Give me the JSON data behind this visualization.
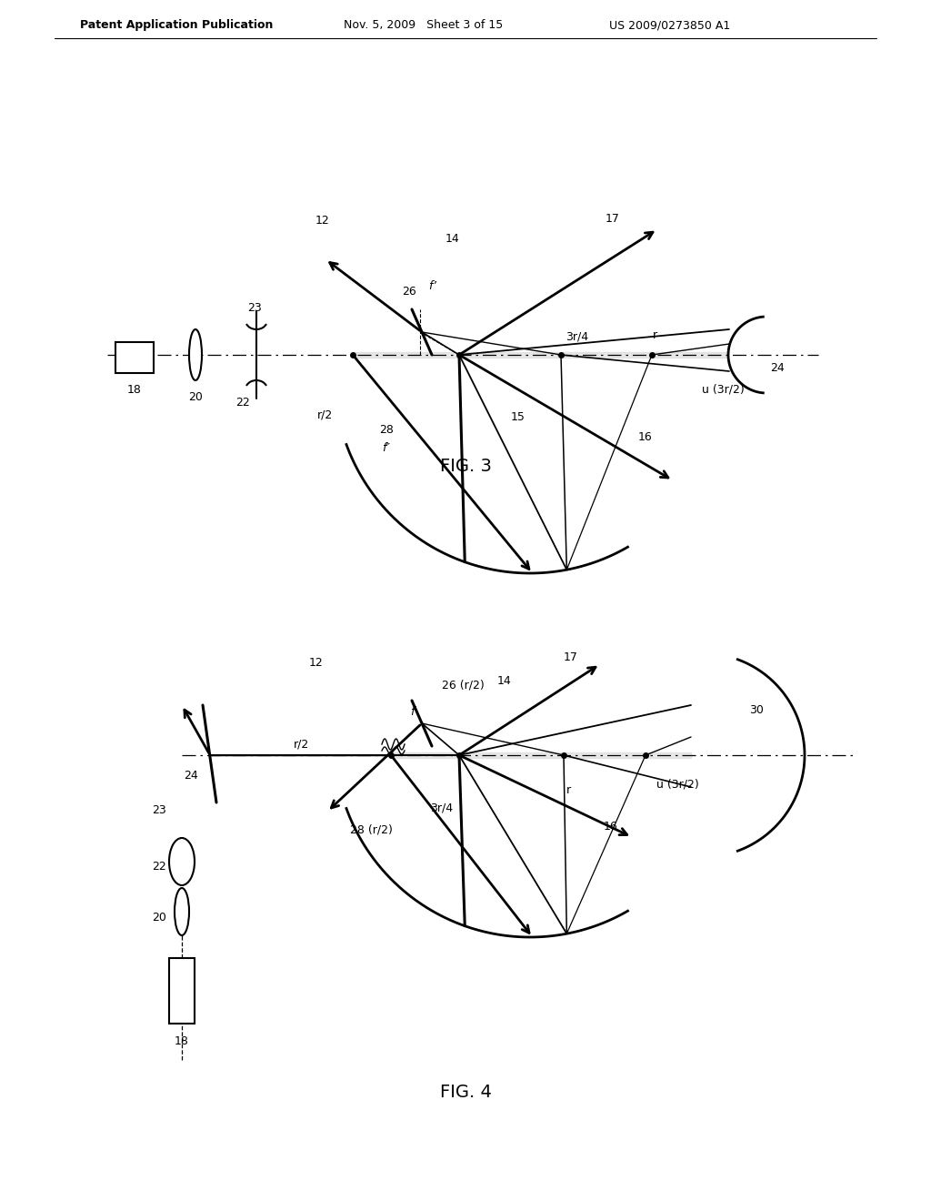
{
  "bg_color": "#ffffff",
  "fig3_caption": "FIG. 3",
  "fig4_caption": "FIG. 4",
  "header_left": "Patent Application Publication",
  "header_mid": "Nov. 5, 2009   Sheet 3 of 15",
  "header_right": "US 2009/0273850 A1"
}
